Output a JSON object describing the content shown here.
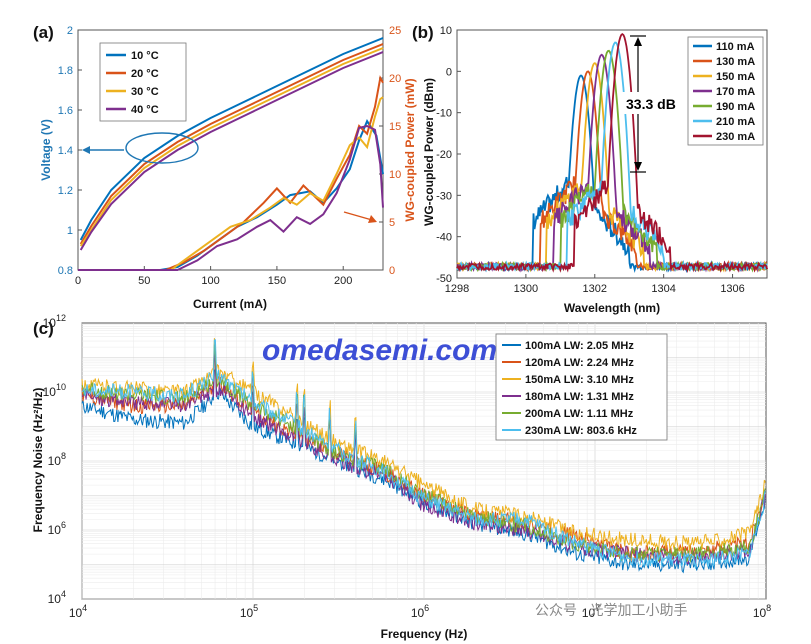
{
  "chart_data": [
    {
      "panel": "(a)",
      "type": "line",
      "xlabel": "Current (mA)",
      "ylabel_left": "Voltage (V)",
      "ylabel_right": "WG-coupled Power (mW)",
      "xlim": [
        0,
        230
      ],
      "ylim_left": [
        0.8,
        2.0
      ],
      "ylim_right": [
        0,
        25
      ],
      "xticks": [
        "0",
        "50",
        "100",
        "150",
        "200"
      ],
      "yticks_left": [
        "0.8",
        "1",
        "1.2",
        "1.4",
        "1.6",
        "1.8",
        "2"
      ],
      "yticks_right": [
        "0",
        "5",
        "10",
        "15",
        "20",
        "25"
      ],
      "left_axis_color": "#1f77b4",
      "right_axis_color": "#d9541a",
      "series": [
        {
          "name": "10 °C",
          "color": "#0072bd",
          "voltage": [
            [
              2,
              0.95
            ],
            [
              10,
              1.05
            ],
            [
              25,
              1.2
            ],
            [
              50,
              1.36
            ],
            [
              75,
              1.47
            ],
            [
              100,
              1.56
            ],
            [
              125,
              1.64
            ],
            [
              150,
              1.72
            ],
            [
              175,
              1.8
            ],
            [
              200,
              1.88
            ],
            [
              230,
              1.96
            ]
          ],
          "power": [
            [
              0,
              0
            ],
            [
              62,
              0
            ],
            [
              75,
              0.3
            ],
            [
              90,
              1.5
            ],
            [
              105,
              3.0
            ],
            [
              120,
              4.5
            ],
            [
              135,
              5.5
            ],
            [
              150,
              6.8
            ],
            [
              160,
              7.8
            ],
            [
              175,
              8.2
            ],
            [
              185,
              7.0
            ],
            [
              195,
              8.5
            ],
            [
              205,
              10.5
            ],
            [
              212,
              13.5
            ],
            [
              218,
              15.5
            ],
            [
              225,
              14.0
            ],
            [
              230,
              10.0
            ]
          ]
        },
        {
          "name": "20 °C",
          "color": "#d95319",
          "voltage": [
            [
              2,
              0.93
            ],
            [
              10,
              1.02
            ],
            [
              25,
              1.17
            ],
            [
              50,
              1.33
            ],
            [
              75,
              1.44
            ],
            [
              100,
              1.53
            ],
            [
              125,
              1.61
            ],
            [
              150,
              1.69
            ],
            [
              175,
              1.77
            ],
            [
              200,
              1.85
            ],
            [
              230,
              1.93
            ]
          ],
          "power": [
            [
              0,
              0
            ],
            [
              66,
              0
            ],
            [
              80,
              0.8
            ],
            [
              95,
              2.0
            ],
            [
              110,
              3.5
            ],
            [
              125,
              5.0
            ],
            [
              140,
              7.0
            ],
            [
              150,
              8.5
            ],
            [
              160,
              7.0
            ],
            [
              170,
              8.8
            ],
            [
              185,
              6.8
            ],
            [
              195,
              9.5
            ],
            [
              205,
              12.0
            ],
            [
              212,
              15.0
            ],
            [
              218,
              14.2
            ],
            [
              224,
              17.0
            ],
            [
              228,
              20.0
            ],
            [
              230,
              19.5
            ]
          ]
        },
        {
          "name": "30 °C",
          "color": "#edb120",
          "voltage": [
            [
              2,
              0.92
            ],
            [
              10,
              1.0
            ],
            [
              25,
              1.15
            ],
            [
              50,
              1.31
            ],
            [
              75,
              1.42
            ],
            [
              100,
              1.51
            ],
            [
              125,
              1.59
            ],
            [
              150,
              1.67
            ],
            [
              175,
              1.75
            ],
            [
              200,
              1.83
            ],
            [
              230,
              1.91
            ]
          ],
          "power": [
            [
              0,
              0
            ],
            [
              70,
              0
            ],
            [
              85,
              1.5
            ],
            [
              100,
              3.0
            ],
            [
              115,
              4.5
            ],
            [
              130,
              5.2
            ],
            [
              145,
              6.5
            ],
            [
              155,
              7.5
            ],
            [
              165,
              6.8
            ],
            [
              175,
              8.0
            ],
            [
              185,
              7.2
            ],
            [
              195,
              10.0
            ],
            [
              205,
              13.0
            ],
            [
              212,
              13.8
            ],
            [
              218,
              12.8
            ],
            [
              224,
              16.0
            ],
            [
              228,
              17.8
            ],
            [
              230,
              18.0
            ]
          ]
        },
        {
          "name": "40 °C",
          "color": "#7e2f8e",
          "voltage": [
            [
              2,
              0.9
            ],
            [
              10,
              0.99
            ],
            [
              25,
              1.13
            ],
            [
              50,
              1.29
            ],
            [
              75,
              1.4
            ],
            [
              100,
              1.49
            ],
            [
              125,
              1.57
            ],
            [
              150,
              1.65
            ],
            [
              175,
              1.73
            ],
            [
              200,
              1.81
            ],
            [
              230,
              1.89
            ]
          ],
          "power": [
            [
              0,
              0
            ],
            [
              75,
              0
            ],
            [
              90,
              1.0
            ],
            [
              105,
              2.5
            ],
            [
              120,
              3.2
            ],
            [
              135,
              4.5
            ],
            [
              145,
              5.2
            ],
            [
              155,
              4.0
            ],
            [
              165,
              5.5
            ],
            [
              175,
              4.8
            ],
            [
              185,
              5.8
            ],
            [
              195,
              8.0
            ],
            [
              205,
              11.5
            ],
            [
              212,
              14.8
            ],
            [
              218,
              15.0
            ],
            [
              224,
              14.6
            ],
            [
              228,
              11.0
            ],
            [
              230,
              6.5
            ]
          ]
        }
      ]
    },
    {
      "panel": "(b)",
      "type": "line",
      "xlabel": "Wavelength (nm)",
      "ylabel": "WG-coupled Power (dBm)",
      "xlim": [
        1298,
        1307
      ],
      "ylim": [
        -50,
        10
      ],
      "xticks": [
        "1298",
        "1300",
        "1302",
        "1304",
        "1306"
      ],
      "yticks": [
        "-50",
        "-40",
        "-30",
        "-20",
        "-10",
        "0",
        "10"
      ],
      "annotation": "33.3 dB",
      "series": [
        {
          "name": "110 mA",
          "color": "#0072bd",
          "peak_nm": 1301.6,
          "peak_dbm": -1
        },
        {
          "name": "130 mA",
          "color": "#d95319",
          "peak_nm": 1301.8,
          "peak_dbm": 0
        },
        {
          "name": "150 mA",
          "color": "#edb120",
          "peak_nm": 1302.0,
          "peak_dbm": 2
        },
        {
          "name": "170 mA",
          "color": "#7e2f8e",
          "peak_nm": 1302.2,
          "peak_dbm": 4
        },
        {
          "name": "190 mA",
          "color": "#77ac30",
          "peak_nm": 1302.4,
          "peak_dbm": 5
        },
        {
          "name": "210 mA",
          "color": "#4dbeee",
          "peak_nm": 1302.6,
          "peak_dbm": 7
        },
        {
          "name": "230 mA",
          "color": "#a2142f",
          "peak_nm": 1302.8,
          "peak_dbm": 9
        }
      ]
    },
    {
      "panel": "(c)",
      "type": "line",
      "xlabel": "Frequency (Hz)",
      "ylabel": "Frequency Noise (Hz²/Hz)",
      "x_scale": "log",
      "y_scale": "log",
      "xlim": [
        10000,
        100000000
      ],
      "ylim": [
        10000,
        1000000000000
      ],
      "xtick_exps": [
        "4",
        "5",
        "6",
        "7",
        "8"
      ],
      "ytick_exps": [
        "4",
        "6",
        "8",
        "10",
        "12"
      ],
      "series": [
        {
          "name": "100mA LW: 2.05 MHz",
          "color": "#0072bd",
          "noise": [
            [
              4,
              9.6
            ],
            [
              4.3,
              9.2
            ],
            [
              4.6,
              9.1
            ],
            [
              4.8,
              10.0
            ],
            [
              5.0,
              9.0
            ],
            [
              5.2,
              8.6
            ],
            [
              5.5,
              8.0
            ],
            [
              5.8,
              7.4
            ],
            [
              6.0,
              6.8
            ],
            [
              6.3,
              6.2
            ],
            [
              6.6,
              5.9
            ],
            [
              6.9,
              5.3
            ],
            [
              7.2,
              5.0
            ],
            [
              7.6,
              5.0
            ],
            [
              7.9,
              5.2
            ],
            [
              8.0,
              7.0
            ]
          ]
        },
        {
          "name": "120mA LW: 2.24 MHz",
          "color": "#d95319",
          "noise": [
            [
              4,
              9.9
            ],
            [
              4.3,
              9.6
            ],
            [
              4.6,
              9.6
            ],
            [
              4.8,
              10.3
            ],
            [
              5.0,
              9.4
            ],
            [
              5.2,
              8.9
            ],
            [
              5.5,
              8.2
            ],
            [
              5.8,
              7.6
            ],
            [
              6.0,
              7.0
            ],
            [
              6.3,
              6.4
            ],
            [
              6.6,
              6.2
            ],
            [
              6.9,
              5.8
            ],
            [
              7.2,
              5.3
            ],
            [
              7.6,
              5.4
            ],
            [
              7.9,
              5.6
            ],
            [
              8.0,
              7.2
            ]
          ]
        },
        {
          "name": "150mA LW: 3.10 MHz",
          "color": "#edb120",
          "noise": [
            [
              4,
              10.2
            ],
            [
              4.3,
              10.1
            ],
            [
              4.6,
              10.0
            ],
            [
              4.8,
              10.6
            ],
            [
              5.0,
              10.0
            ],
            [
              5.2,
              9.4
            ],
            [
              5.5,
              8.5
            ],
            [
              5.8,
              7.9
            ],
            [
              6.0,
              7.3
            ],
            [
              6.3,
              6.6
            ],
            [
              6.6,
              6.4
            ],
            [
              6.9,
              5.9
            ],
            [
              7.2,
              5.7
            ],
            [
              7.6,
              5.6
            ],
            [
              7.9,
              5.9
            ],
            [
              8.0,
              7.4
            ]
          ]
        },
        {
          "name": "180mA LW: 1.31 MHz",
          "color": "#7e2f8e",
          "noise": [
            [
              4,
              9.9
            ],
            [
              4.3,
              9.7
            ],
            [
              4.6,
              9.6
            ],
            [
              4.8,
              10.1
            ],
            [
              5.0,
              9.3
            ],
            [
              5.2,
              8.8
            ],
            [
              5.5,
              8.0
            ],
            [
              5.8,
              7.5
            ],
            [
              6.0,
              6.7
            ],
            [
              6.3,
              6.2
            ],
            [
              6.6,
              6.0
            ],
            [
              6.9,
              5.5
            ],
            [
              7.2,
              5.3
            ],
            [
              7.6,
              5.2
            ],
            [
              7.9,
              5.4
            ],
            [
              8.0,
              7.0
            ]
          ]
        },
        {
          "name": "200mA LW: 1.11 MHz",
          "color": "#77ac30",
          "noise": [
            [
              4,
              10.1
            ],
            [
              4.3,
              9.9
            ],
            [
              4.6,
              9.8
            ],
            [
              4.8,
              10.4
            ],
            [
              5.0,
              9.6
            ],
            [
              5.2,
              9.1
            ],
            [
              5.5,
              8.2
            ],
            [
              5.8,
              7.7
            ],
            [
              6.0,
              7.0
            ],
            [
              6.3,
              6.4
            ],
            [
              6.6,
              6.1
            ],
            [
              6.9,
              5.6
            ],
            [
              7.2,
              5.3
            ],
            [
              7.6,
              5.3
            ],
            [
              7.9,
              5.5
            ],
            [
              8.0,
              7.1
            ]
          ]
        },
        {
          "name": "230mA LW: 803.6 kHz",
          "color": "#4dbeee",
          "noise": [
            [
              4,
              10.1
            ],
            [
              4.3,
              10.0
            ],
            [
              4.6,
              9.9
            ],
            [
              4.8,
              10.5
            ],
            [
              5.0,
              9.7
            ],
            [
              5.2,
              9.2
            ],
            [
              5.5,
              8.3
            ],
            [
              5.8,
              7.6
            ],
            [
              6.0,
              6.9
            ],
            [
              6.3,
              6.3
            ],
            [
              6.6,
              6.3
            ],
            [
              6.9,
              5.6
            ],
            [
              7.2,
              5.2
            ],
            [
              7.6,
              5.1
            ],
            [
              7.9,
              5.3
            ],
            [
              8.0,
              7.0
            ]
          ]
        }
      ]
    }
  ],
  "watermark": "omedasemi.com",
  "footer": "公众号 · 光学加工小助手"
}
